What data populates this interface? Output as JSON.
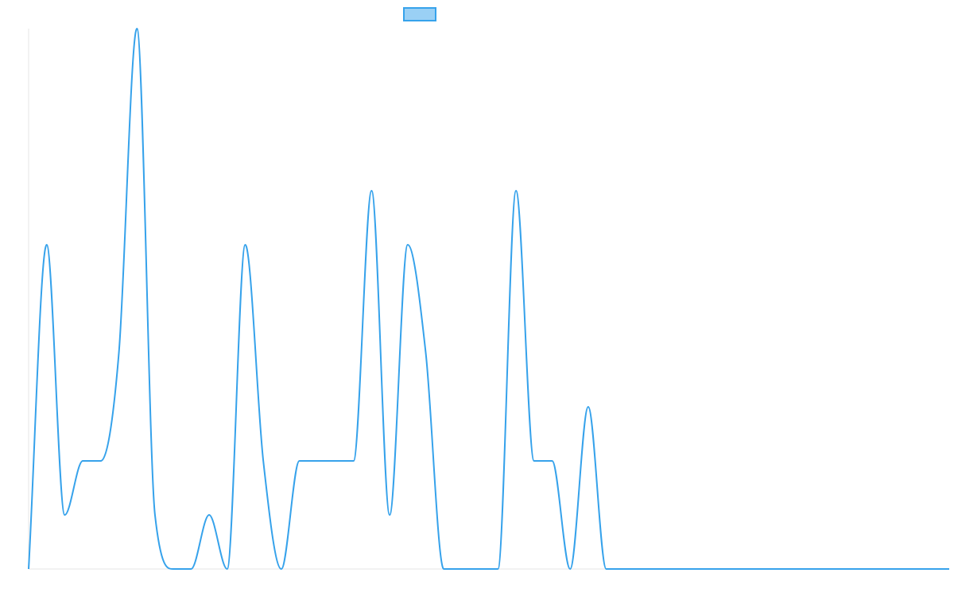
{
  "chart_data": {
    "type": "line",
    "title": "",
    "xlabel": "",
    "ylabel": "",
    "x": [
      0,
      1,
      2,
      3,
      4,
      5,
      6,
      7,
      8,
      9,
      10,
      11,
      12,
      13,
      14,
      15,
      16,
      17,
      18,
      19,
      20,
      21,
      22,
      23,
      24,
      25,
      26,
      27,
      28,
      29,
      30,
      31,
      32,
      33,
      34,
      35,
      36,
      37,
      38,
      39,
      40,
      41,
      42,
      43,
      44,
      45,
      46,
      47,
      48,
      49,
      50,
      51
    ],
    "series": [
      {
        "name": "",
        "values": [
          0,
          6,
          1,
          2,
          2,
          4,
          10,
          1,
          0,
          0,
          1,
          0,
          6,
          2,
          0,
          2,
          2,
          2,
          2,
          7,
          1,
          6,
          4,
          0,
          0,
          0,
          0,
          7,
          2,
          2,
          0,
          3,
          0,
          0,
          0,
          0,
          0,
          0,
          0,
          0,
          0,
          0,
          0,
          0,
          0,
          0,
          0,
          0,
          0,
          0,
          0,
          0
        ]
      }
    ],
    "ylim": [
      0,
      10
    ],
    "grid": false,
    "show_tick_labels": false,
    "legend": {
      "position": "top",
      "label": ""
    },
    "colors": {
      "line": "#36a2eb",
      "legend_fill": "#9ad0f5",
      "axis": "#e5e5e5"
    }
  }
}
